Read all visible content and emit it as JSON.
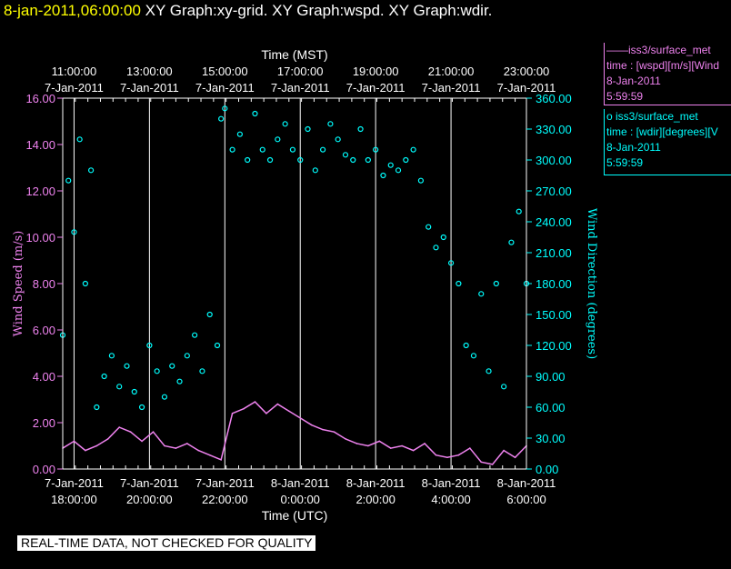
{
  "header": {
    "timestamp": "8-jan-2011,06:00:00",
    "plots": "XY Graph:xy-grid.  XY Graph:wspd.  XY Graph:wdir."
  },
  "legend": {
    "wspd": {
      "name": "iss3/surface_met",
      "variable": "time : [wspd][m/s][Wind",
      "date": "8-Jan-2011",
      "time": "5:59:59"
    },
    "wdir": {
      "name": "iss3/surface_met",
      "variable": "time : [wdir][degrees][V",
      "date": "8-Jan-2011",
      "time": "5:59:59"
    }
  },
  "footer": {
    "notice": "REAL-TIME DATA, NOT CHECKED FOR QUALITY"
  },
  "colors": {
    "wspd": "#ee82ee",
    "wdir": "#00ffff",
    "grid": "#ffffff",
    "background": "#000000"
  },
  "chart_data": {
    "type": "line",
    "top_axis": {
      "label": "Time (MST)",
      "ticks": [
        {
          "time": "11:00:00",
          "date": "7-Jan-2011"
        },
        {
          "time": "13:00:00",
          "date": "7-Jan-2011"
        },
        {
          "time": "15:00:00",
          "date": "7-Jan-2011"
        },
        {
          "time": "17:00:00",
          "date": "7-Jan-2011"
        },
        {
          "time": "19:00:00",
          "date": "7-Jan-2011"
        },
        {
          "time": "21:00:00",
          "date": "7-Jan-2011"
        },
        {
          "time": "23:00:00",
          "date": "7-Jan-2011"
        }
      ]
    },
    "bottom_axis": {
      "label": "Time (UTC)",
      "ticks": [
        {
          "date": "7-Jan-2011",
          "time": "18:00:00"
        },
        {
          "date": "7-Jan-2011",
          "time": "20:00:00"
        },
        {
          "date": "7-Jan-2011",
          "time": "22:00:00"
        },
        {
          "date": "8-Jan-2011",
          "time": "0:00:00"
        },
        {
          "date": "8-Jan-2011",
          "time": "2:00:00"
        },
        {
          "date": "8-Jan-2011",
          "time": "4:00:00"
        },
        {
          "date": "8-Jan-2011",
          "time": "6:00:00"
        }
      ]
    },
    "xlim_utc_hours": [
      17.7,
      30.0
    ],
    "left_axis": {
      "label": "Wind Speed (m/s)",
      "ylim": [
        0,
        16
      ],
      "ticks": [
        "0.00",
        "2.00",
        "4.00",
        "6.00",
        "8.00",
        "10.00",
        "12.00",
        "14.00",
        "16.00"
      ]
    },
    "right_axis": {
      "label": "Wind Direction (degrees)",
      "ylim": [
        0,
        360
      ],
      "ticks": [
        "0.00",
        "30.00",
        "60.00",
        "90.00",
        "120.00",
        "150.00",
        "180.00",
        "210.00",
        "240.00",
        "270.00",
        "300.00",
        "330.00",
        "360.00"
      ]
    },
    "grid": true,
    "series": [
      {
        "name": "wspd",
        "style": "line",
        "x": [
          17.7,
          18.0,
          18.3,
          18.6,
          18.9,
          19.2,
          19.5,
          19.8,
          20.1,
          20.4,
          20.7,
          21.0,
          21.3,
          21.6,
          21.9,
          22.2,
          22.5,
          22.8,
          23.1,
          23.4,
          23.7,
          24.0,
          24.3,
          24.6,
          24.9,
          25.2,
          25.5,
          25.8,
          26.1,
          26.4,
          26.7,
          27.0,
          27.3,
          27.6,
          27.9,
          28.2,
          28.5,
          28.8,
          29.1,
          29.4,
          29.7,
          30.0
        ],
        "y": [
          0.9,
          1.2,
          0.8,
          1.0,
          1.3,
          1.8,
          1.6,
          1.2,
          1.6,
          1.0,
          0.9,
          1.1,
          0.8,
          0.6,
          0.4,
          2.4,
          2.6,
          2.9,
          2.4,
          2.8,
          2.5,
          2.2,
          1.9,
          1.7,
          1.6,
          1.3,
          1.1,
          1.0,
          1.2,
          0.9,
          1.0,
          0.8,
          1.1,
          0.6,
          0.5,
          0.6,
          0.9,
          0.3,
          0.2,
          0.8,
          0.5,
          1.0
        ]
      },
      {
        "name": "wdir",
        "style": "points",
        "x": [
          17.7,
          17.85,
          18.0,
          18.15,
          18.3,
          18.45,
          18.6,
          18.8,
          19.0,
          19.2,
          19.4,
          19.6,
          19.8,
          20.0,
          20.2,
          20.4,
          20.6,
          20.8,
          21.0,
          21.2,
          21.4,
          21.6,
          21.8,
          21.9,
          22.0,
          22.2,
          22.4,
          22.6,
          22.8,
          23.0,
          23.2,
          23.4,
          23.6,
          23.8,
          24.0,
          24.2,
          24.4,
          24.6,
          24.8,
          25.0,
          25.2,
          25.4,
          25.6,
          25.8,
          26.0,
          26.2,
          26.4,
          26.6,
          26.8,
          27.0,
          27.2,
          27.4,
          27.6,
          27.8,
          28.0,
          28.2,
          28.4,
          28.6,
          28.8,
          29.0,
          29.2,
          29.4,
          29.6,
          29.8,
          30.0
        ],
        "y": [
          130,
          280,
          230,
          320,
          180,
          290,
          60,
          90,
          110,
          80,
          100,
          75,
          60,
          120,
          95,
          70,
          100,
          85,
          110,
          130,
          95,
          150,
          120,
          340,
          350,
          310,
          325,
          300,
          345,
          310,
          300,
          320,
          335,
          310,
          300,
          330,
          290,
          310,
          335,
          320,
          305,
          300,
          330,
          300,
          310,
          285,
          295,
          290,
          300,
          310,
          280,
          235,
          215,
          225,
          200,
          180,
          120,
          110,
          170,
          95,
          180,
          80,
          220,
          250,
          180
        ]
      }
    ]
  }
}
